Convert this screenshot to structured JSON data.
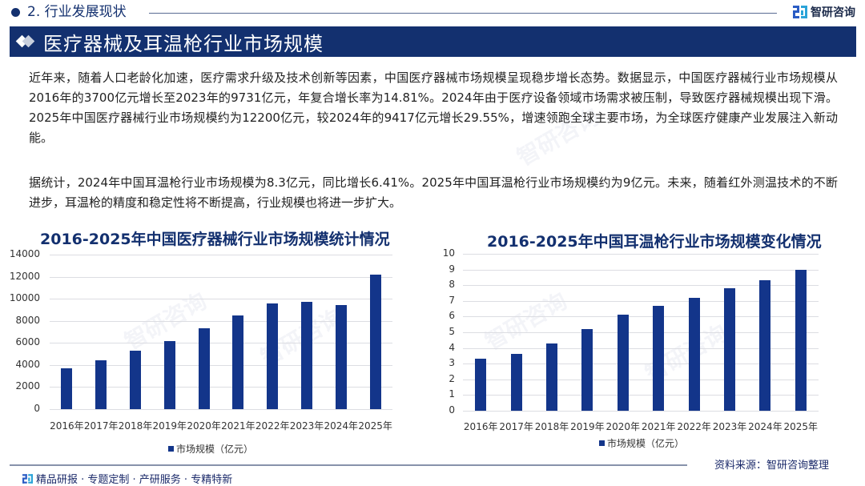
{
  "header": {
    "section_label": "2. 行业发展现状",
    "logo_text": "智研咨询",
    "page_title": "医疗器械及耳温枪行业市场规模"
  },
  "body": {
    "paragraph_1": "近年来，随着人口老龄化加速，医疗需求升级及技术创新等因素，中国医疗器械市场规模呈现稳步增长态势。数据显示，中国医疗器械行业市场规模从2016年的3700亿元增长至2023年的9731亿元，年复合增长率为14.81%。2024年由于医疗设备领域市场需求被压制，导致医疗器械规模出现下滑。2025年中国医疗器械行业市场规模约为12200亿元，较2024年的9417亿元增长29.55%，增速领跑全球主要市场，为全球医疗健康产业发展注入新动能。",
    "paragraph_2": "据统计，2024年中国耳温枪行业市场规模为8.3亿元，同比增长6.41%。2025年中国耳温枪行业市场规模约为9亿元。未来，随着红外测温技术的不断进步，耳温枪的精度和稳定性将不断提高，行业规模也将进一步扩大。"
  },
  "chart_data": [
    {
      "type": "bar",
      "title": "2016-2025年中国医疗器械行业市场规模统计情况",
      "categories": [
        "2016年",
        "2017年",
        "2018年",
        "2019年",
        "2020年",
        "2021年",
        "2022年",
        "2023年",
        "2024年",
        "2025年"
      ],
      "series": [
        {
          "name": "市场规模（亿元）",
          "values": [
            3700,
            4400,
            5300,
            6200,
            7300,
            8500,
            9600,
            9731,
            9417,
            12200
          ],
          "color": "#13358a"
        }
      ],
      "xlabel": "",
      "ylabel": "",
      "ylim": [
        0,
        14000
      ],
      "yticks": [
        "0",
        "2000",
        "4000",
        "6000",
        "8000",
        "10000",
        "12000",
        "14000"
      ],
      "grid": true,
      "legend_position": "bottom"
    },
    {
      "type": "bar",
      "title": "2016-2025年中国耳温枪行业市场规模变化情况",
      "categories": [
        "2016年",
        "2017年",
        "2018年",
        "2019年",
        "2020年",
        "2021年",
        "2022年",
        "2023年",
        "2024年",
        "2025年"
      ],
      "series": [
        {
          "name": "市场规模（亿元）",
          "values": [
            3.3,
            3.6,
            4.3,
            5.2,
            6.1,
            6.7,
            7.2,
            7.8,
            8.3,
            9.0
          ],
          "color": "#13358a"
        }
      ],
      "xlabel": "",
      "ylabel": "",
      "ylim": [
        0,
        10
      ],
      "yticks": [
        "0",
        "1",
        "2",
        "3",
        "4",
        "5",
        "6",
        "7",
        "8",
        "9",
        "10"
      ],
      "grid": true,
      "legend_position": "bottom"
    }
  ],
  "footer": {
    "tagline": "精品研报 · 专题定制 · 产研服务 · 专精特新",
    "source": "资料来源：智研咨询整理"
  },
  "colors": {
    "brand_navy": "#13306f",
    "bar_blue": "#13358a"
  }
}
